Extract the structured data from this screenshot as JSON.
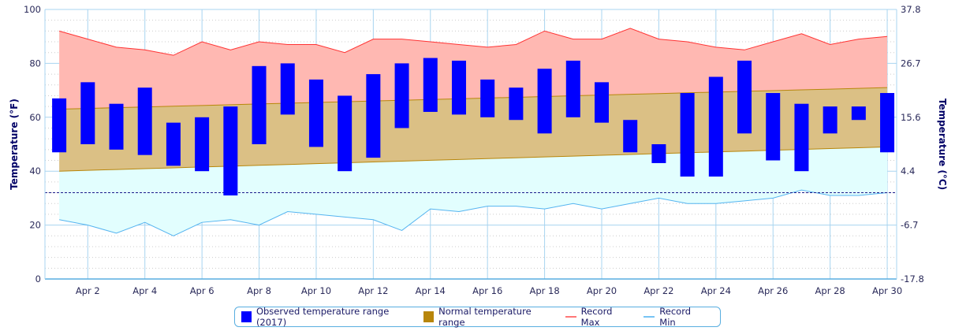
{
  "chart_data": {
    "type": "bar",
    "title": "",
    "ylabel": "Temperature (°F)",
    "ylabel_right": "Temperature (°C)",
    "ylim": [
      0,
      100
    ],
    "yticks": [
      0,
      20,
      40,
      60,
      80,
      100
    ],
    "yticks_right": [
      "-17.8",
      "-6.7",
      "4.4",
      "15.6",
      "26.7",
      "37.8"
    ],
    "xticks": [
      "Apr 2",
      "Apr 4",
      "Apr 6",
      "Apr 8",
      "Apr 10",
      "Apr 12",
      "Apr 14",
      "Apr 16",
      "Apr 18",
      "Apr 20",
      "Apr 22",
      "Apr 24",
      "Apr 26",
      "Apr 28",
      "Apr 30"
    ],
    "days": [
      1,
      2,
      3,
      4,
      5,
      6,
      7,
      8,
      9,
      10,
      11,
      12,
      13,
      14,
      15,
      16,
      17,
      18,
      19,
      20,
      21,
      22,
      23,
      24,
      25,
      26,
      27,
      28,
      29,
      30
    ],
    "freezing_line": 32,
    "grid": true,
    "legend_position": "bottom",
    "series": [
      {
        "name": "Observed temperature range (2017)",
        "type": "range-bar",
        "color": "#0000ff",
        "high": [
          67,
          73,
          65,
          71,
          58,
          60,
          64,
          79,
          80,
          74,
          68,
          76,
          80,
          82,
          81,
          74,
          71,
          78,
          81,
          73,
          59,
          50,
          69,
          75,
          81,
          69,
          65,
          64,
          64,
          69
        ],
        "low": [
          47,
          50,
          48,
          46,
          42,
          40,
          31,
          50,
          61,
          49,
          40,
          45,
          56,
          62,
          61,
          60,
          59,
          54,
          60,
          58,
          47,
          43,
          38,
          38,
          54,
          44,
          40,
          54,
          59,
          47
        ]
      },
      {
        "name": "Normal temperature range",
        "type": "range-area",
        "color": "#b8860b",
        "high_start": 63,
        "high_end": 71,
        "low_start": 40,
        "low_end": 49
      },
      {
        "name": "Record Max",
        "type": "line",
        "color": "#ff3333",
        "values": [
          92,
          89,
          86,
          85,
          83,
          88,
          85,
          88,
          87,
          87,
          84,
          89,
          89,
          88,
          87,
          86,
          87,
          92,
          89,
          89,
          93,
          89,
          88,
          86,
          85,
          88,
          91,
          87,
          89,
          90
        ]
      },
      {
        "name": "Record Min",
        "type": "line",
        "color": "#55b4f0",
        "values": [
          22,
          20,
          17,
          21,
          16,
          21,
          22,
          20,
          25,
          24,
          23,
          22,
          18,
          26,
          25,
          27,
          27,
          26,
          28,
          26,
          28,
          30,
          28,
          28,
          29,
          30,
          33,
          31,
          31,
          32
        ]
      }
    ]
  }
}
